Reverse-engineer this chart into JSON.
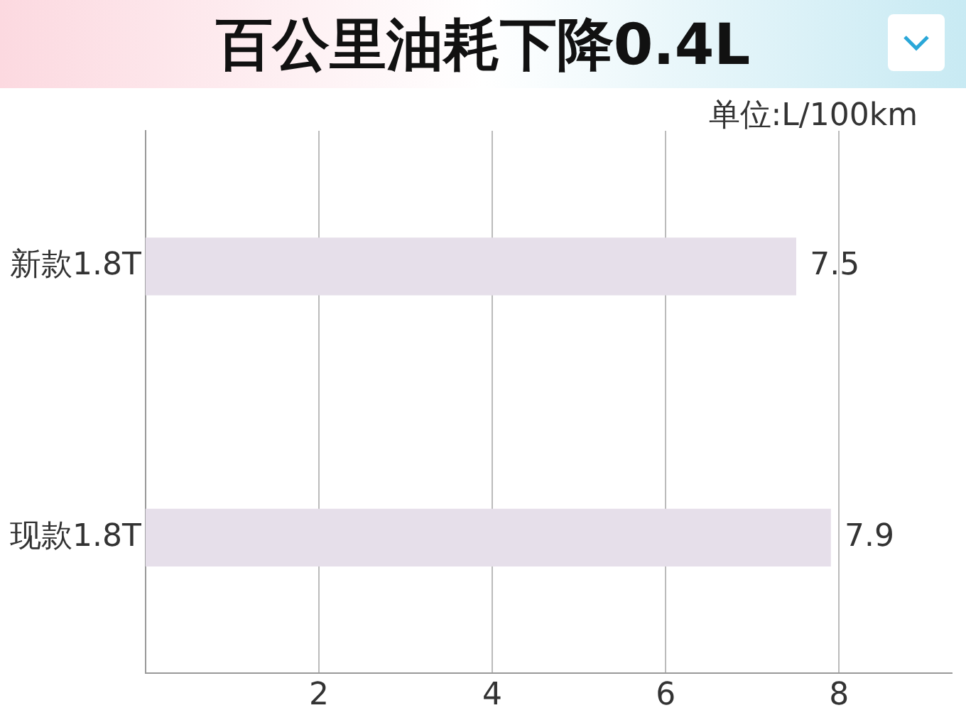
{
  "chart_data": {
    "type": "bar",
    "orientation": "horizontal",
    "title": "百公里油耗下降0.4L",
    "annotations": [
      "单位:L/100km"
    ],
    "categories": [
      "新款1.8T",
      "现款1.8T"
    ],
    "values": [
      7.5,
      7.9
    ],
    "color": "#e6dfea",
    "xlim": [
      0,
      9.3
    ],
    "xticks": [
      2,
      4,
      6,
      8
    ],
    "grid": "x",
    "data_labels": true
  }
}
